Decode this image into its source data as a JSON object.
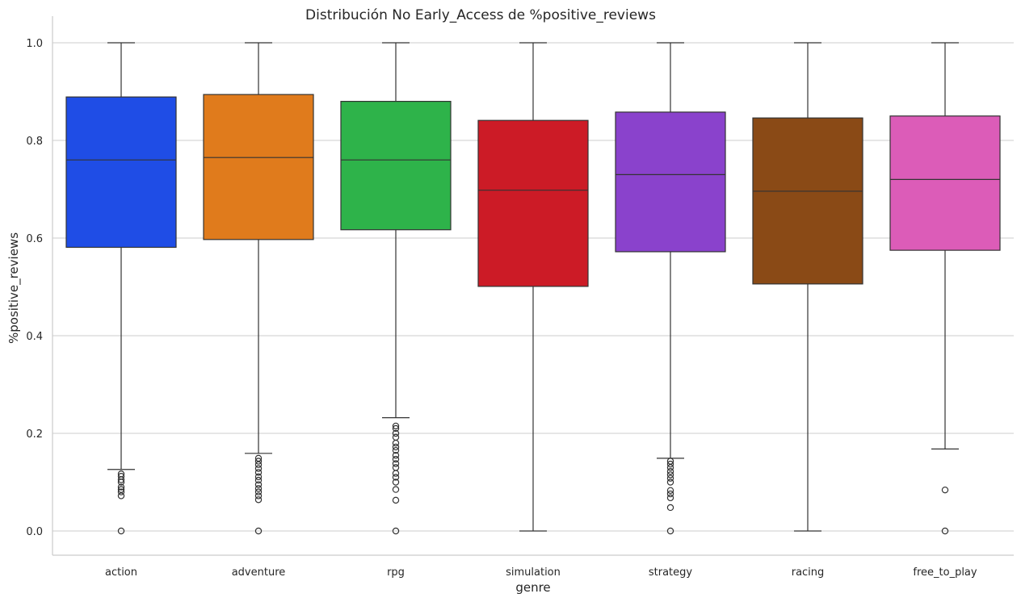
{
  "chart_data": {
    "type": "box",
    "title": "Distribución No Early_Access de %positive_reviews",
    "xlabel": "genre",
    "ylabel": "%positive_reviews",
    "ylim": [
      -0.05,
      1.055
    ],
    "yticks": [
      0.0,
      0.2,
      0.4,
      0.6,
      0.8,
      1.0
    ],
    "ytick_labels": [
      "0.0",
      "0.2",
      "0.4",
      "0.6",
      "0.8",
      "1.0"
    ],
    "grid": "horizontal",
    "categories": [
      "action",
      "adventure",
      "rpg",
      "simulation",
      "strategy",
      "racing",
      "free_to_play"
    ],
    "boxes": [
      {
        "category": "action",
        "color": "#1f4de6",
        "whisker_low": 0.126,
        "q1": 0.581,
        "median": 0.76,
        "q3": 0.889,
        "whisker_high": 1.0,
        "outliers": [
          0.117,
          0.112,
          0.105,
          0.1,
          0.09,
          0.085,
          0.08,
          0.072,
          0.0
        ]
      },
      {
        "category": "adventure",
        "color": "#e07b1c",
        "whisker_low": 0.159,
        "q1": 0.597,
        "median": 0.765,
        "q3": 0.894,
        "whisker_high": 1.0,
        "outliers": [
          0.149,
          0.143,
          0.136,
          0.128,
          0.12,
          0.111,
          0.104,
          0.095,
          0.087,
          0.08,
          0.072,
          0.064,
          0.0
        ]
      },
      {
        "category": "rpg",
        "color": "#2eb34a",
        "whisker_low": 0.232,
        "q1": 0.617,
        "median": 0.76,
        "q3": 0.88,
        "whisker_high": 1.0,
        "outliers": [
          0.215,
          0.21,
          0.2,
          0.192,
          0.18,
          0.172,
          0.165,
          0.155,
          0.147,
          0.138,
          0.13,
          0.118,
          0.11,
          0.1,
          0.085,
          0.063,
          0.0
        ]
      },
      {
        "category": "simulation",
        "color": "#cc1b26",
        "whisker_low": 0.0,
        "q1": 0.501,
        "median": 0.698,
        "q3": 0.841,
        "whisker_high": 1.0,
        "outliers": []
      },
      {
        "category": "strategy",
        "color": "#8a42cc",
        "whisker_low": 0.149,
        "q1": 0.572,
        "median": 0.73,
        "q3": 0.858,
        "whisker_high": 1.0,
        "outliers": [
          0.143,
          0.137,
          0.13,
          0.122,
          0.115,
          0.108,
          0.1,
          0.083,
          0.076,
          0.068,
          0.048,
          0.0
        ]
      },
      {
        "category": "racing",
        "color": "#8a4a16",
        "whisker_low": 0.0,
        "q1": 0.506,
        "median": 0.696,
        "q3": 0.846,
        "whisker_high": 1.0,
        "outliers": []
      },
      {
        "category": "free_to_play",
        "color": "#dc5cb8",
        "whisker_low": 0.168,
        "q1": 0.575,
        "median": 0.72,
        "q3": 0.85,
        "whisker_high": 1.0,
        "outliers": [
          0.084,
          0.0
        ]
      }
    ]
  }
}
